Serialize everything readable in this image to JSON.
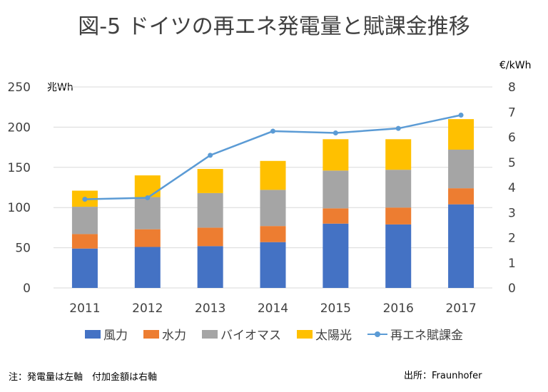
{
  "title": "図-5 ドイツの再エネ発電量と賦課金推移",
  "note": "注：発電量は左軸　付加金額は右軸",
  "source": "出所：Fraunhofer",
  "colors": {
    "wind": "#4472c4",
    "hydro": "#ed7d31",
    "biomass": "#a5a5a5",
    "solar": "#ffc000",
    "surcharge": "#5b9bd5",
    "grid": "#d9d9d9",
    "axis_text": "#404040"
  },
  "chart_data": {
    "type": "bar",
    "stacked": true,
    "title": "図-5 ドイツの再エネ発電量と賦課金推移",
    "categories": [
      "2011",
      "2012",
      "2013",
      "2014",
      "2015",
      "2016",
      "2017"
    ],
    "y_left": {
      "unit": "兆Wh",
      "ylim": [
        0,
        250
      ],
      "ticks": [
        "0",
        "50",
        "100",
        "150",
        "200",
        "250"
      ]
    },
    "y_right": {
      "unit": "€/kWh",
      "ylim": [
        0,
        8
      ],
      "ticks": [
        "0",
        "1",
        "2",
        "3",
        "4",
        "5",
        "6",
        "7",
        "8"
      ]
    },
    "series": [
      {
        "name": "風力",
        "axis": "left",
        "color": "#4472c4",
        "values": [
          49,
          51,
          52,
          57,
          80,
          79,
          104
        ]
      },
      {
        "name": "水力",
        "axis": "left",
        "color": "#ed7d31",
        "values": [
          18,
          22,
          23,
          20,
          19,
          21,
          20
        ]
      },
      {
        "name": "バイオマス",
        "axis": "left",
        "color": "#a5a5a5",
        "values": [
          34,
          40,
          43,
          45,
          47,
          47,
          48
        ]
      },
      {
        "name": "太陽光",
        "axis": "left",
        "color": "#ffc000",
        "values": [
          20,
          27,
          30,
          36,
          39,
          38,
          38
        ]
      },
      {
        "name": "再エネ賦課金",
        "axis": "right",
        "type": "line",
        "color": "#5b9bd5",
        "values": [
          3.53,
          3.59,
          5.28,
          6.24,
          6.17,
          6.35,
          6.88
        ]
      }
    ],
    "grid": true,
    "legend_position": "bottom"
  }
}
